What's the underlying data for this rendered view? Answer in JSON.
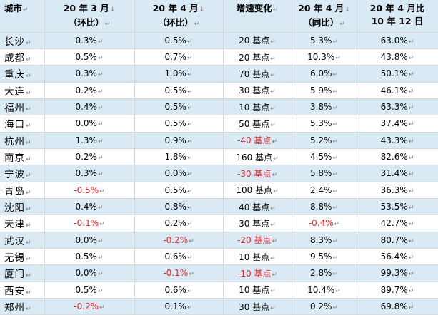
{
  "headers": [
    {
      "lines": [
        "城市"
      ]
    },
    {
      "lines": [
        "20 年 3 月",
        "（环比）"
      ]
    },
    {
      "lines": [
        "20 年 4 月",
        "（环比）"
      ]
    },
    {
      "lines": [
        "增速变化"
      ]
    },
    {
      "lines": [
        "20 年 4 月",
        "（同比）"
      ]
    },
    {
      "lines": [
        "20 年 4 月比",
        "10 年 12 日"
      ]
    }
  ],
  "marks": {
    "header_trail": "↓",
    "cell_trail": "↵"
  },
  "rows": [
    [
      "长沙",
      "0.3%",
      "0.5%",
      "20 基点",
      "5.3%",
      "63.0%"
    ],
    [
      "成都",
      "0.5%",
      "0.7%",
      "20 基点",
      "10.3%",
      "43.8%"
    ],
    [
      "重庆",
      "0.3%",
      "1.0%",
      "70 基点",
      "6.0%",
      "50.1%"
    ],
    [
      "大连",
      "0.2%",
      "0.5%",
      "30 基点",
      "5.9%",
      "46.1%"
    ],
    [
      "福州",
      "0.4%",
      "0.5%",
      "10 基点",
      "3.8%",
      "63.3%"
    ],
    [
      "海口",
      "0.0%",
      "0.5%",
      "50 基点",
      "5.3%",
      "37.4%"
    ],
    [
      "杭州",
      "1.3%",
      "0.9%",
      "-40 基点",
      "5.2%",
      "43.3%"
    ],
    [
      "南京",
      "0.2%",
      "1.8%",
      "160 基点",
      "4.5%",
      "82.6%"
    ],
    [
      "宁波",
      "0.3%",
      "0.0%",
      "-30 基点",
      "5.8%",
      "31.4%"
    ],
    [
      "青岛",
      "-0.5%",
      "0.5%",
      "100 基点",
      "2.4%",
      "36.3%"
    ],
    [
      "沈阳",
      "0.4%",
      "0.8%",
      "40 基点",
      "8.8%",
      "53.5%"
    ],
    [
      "天津",
      "-0.1%",
      "0.2%",
      "30 基点",
      "-0.4%",
      "42.7%"
    ],
    [
      "武汉",
      "0.0%",
      "-0.2%",
      "-20 基点",
      "8.3%",
      "80.7%"
    ],
    [
      "无锡",
      "0.5%",
      "0.6%",
      "10 基点",
      "9.5%",
      "56.4%"
    ],
    [
      "厦门",
      "0.0%",
      "-0.1%",
      "-10 基点",
      "2.8%",
      "99.3%"
    ],
    [
      "西安",
      "0.5%",
      "0.6%",
      "10 基点",
      "10.4%",
      "89.7%"
    ],
    [
      "郑州",
      "-0.2%",
      "0.1%",
      "30 基点",
      "0.2%",
      "69.8%"
    ]
  ],
  "colors": {
    "stripe": "#d9eaf4",
    "negative": "#e8252b",
    "text": "#000000"
  }
}
